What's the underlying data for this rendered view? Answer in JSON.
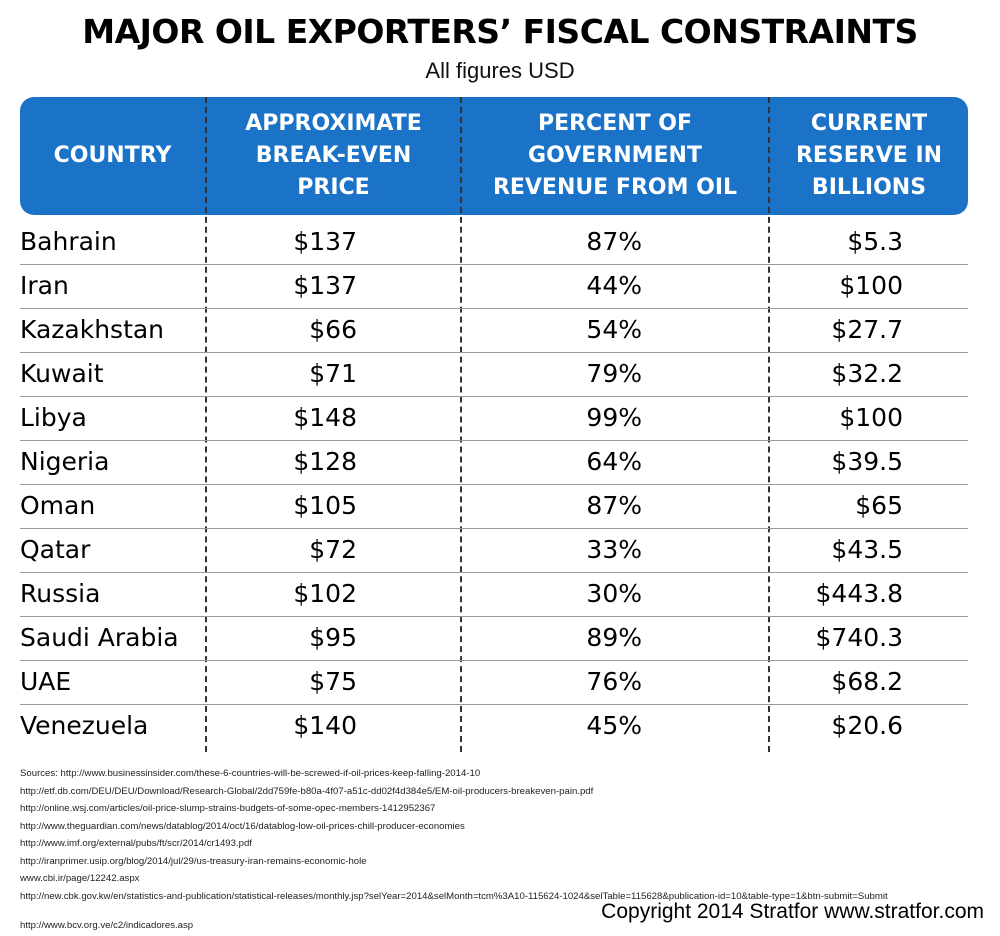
{
  "title": "MAJOR OIL EXPORTERS’ FISCAL CONSTRAINTS",
  "subtitle": "All figures USD",
  "header_color": "#1a73c7",
  "columns": [
    "COUNTRY",
    "APPROXIMATE\nBREAK-EVEN\nPRICE",
    "PERCENT OF\nGOVERNMENT\nREVENUE FROM OIL",
    "CURRENT\nRESERVE IN\nBILLIONS"
  ],
  "chart_data": {
    "type": "table",
    "title": "MAJOR OIL EXPORTERS’ FISCAL CONSTRAINTS",
    "subtitle": "All figures USD",
    "columns": [
      "COUNTRY",
      "APPROXIMATE BREAK-EVEN PRICE",
      "PERCENT OF GOVERNMENT REVENUE FROM OIL",
      "CURRENT RESERVE IN BILLIONS"
    ],
    "rows": [
      {
        "country": "Bahrain",
        "price": "$137",
        "pct": "87%",
        "reserve": "$5.3"
      },
      {
        "country": "Iran",
        "price": "$137",
        "pct": "44%",
        "reserve": "$100"
      },
      {
        "country": "Kazakhstan",
        "price": "$66",
        "pct": "54%",
        "reserve": "$27.7"
      },
      {
        "country": "Kuwait",
        "price": "$71",
        "pct": "79%",
        "reserve": "$32.2"
      },
      {
        "country": "Libya",
        "price": "$148",
        "pct": "99%",
        "reserve": "$100"
      },
      {
        "country": "Nigeria",
        "price": "$128",
        "pct": "64%",
        "reserve": "$39.5"
      },
      {
        "country": "Oman",
        "price": "$105",
        "pct": "87%",
        "reserve": "$65"
      },
      {
        "country": "Qatar",
        "price": "$72",
        "pct": "33%",
        "reserve": "$43.5"
      },
      {
        "country": "Russia",
        "price": "$102",
        "pct": "30%",
        "reserve": "$443.8"
      },
      {
        "country": "Saudi Arabia",
        "price": "$95",
        "pct": "89%",
        "reserve": "$740.3"
      },
      {
        "country": "UAE",
        "price": "$75",
        "pct": "76%",
        "reserve": "$68.2"
      },
      {
        "country": "Venezuela",
        "price": "$140",
        "pct": "45%",
        "reserve": "$20.6"
      }
    ]
  },
  "sources": [
    "Sources: http://www.businessinsider.com/these-6-countries-will-be-screwed-if-oil-prices-keep-falling-2014-10",
    "http://etf.db.com/DEU/DEU/Download/Research-Global/2dd759fe-b80a-4f07-a51c-dd02f4d384e5/EM-oil-producers-breakeven-pain.pdf",
    "http://online.wsj.com/articles/oil-price-slump-strains-budgets-of-some-opec-members-1412952367",
    "http://www.theguardian.com/news/datablog/2014/oct/16/datablog-low-oil-prices-chill-producer-economies",
    "http://www.imf.org/external/pubs/ft/scr/2014/cr1493.pdf",
    "http://iranprimer.usip.org/blog/2014/jul/29/us-treasury-iran-remains-economic-hole",
    "www.cbi.ir/page/12242.aspx",
    "http://new.cbk.gov.kw/en/statistics-and-publication/statistical-releases/monthly.jsp?selYear=2014&selMonth=tcm%3A10-115624-1024&selTable=115628&publication-id=10&table-type=1&btn-submit=Submit",
    "http://www.bcv.org.ve/c2/indicadores.asp"
  ],
  "copyright": "Copyright 2014 Stratfor www.stratfor.com"
}
